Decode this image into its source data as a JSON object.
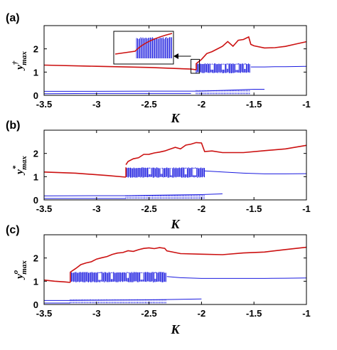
{
  "colors": {
    "upper": "#cc1111",
    "lower": "#1a1adf",
    "axis": "#000000"
  },
  "chart_data": [
    {
      "type": "scatter",
      "panel_label": "(a)",
      "xlabel": "K",
      "ylabel_base": "y",
      "ylabel_sup": "†",
      "ylabel_sub": "max",
      "xlim": [
        -3.5,
        -1
      ],
      "ylim": [
        0,
        3
      ],
      "xticks": [
        -3.5,
        -3,
        -2.5,
        -2,
        -1.5,
        -1
      ],
      "xtick_labels": [
        "-3.5",
        "-3",
        "-2.5",
        "-2",
        "-1.5",
        "-1"
      ],
      "yticks": [
        0,
        1,
        2
      ],
      "ytick_labels": [
        "0",
        "1",
        "2"
      ],
      "grid": false,
      "onset": -2.05,
      "chaos_end": -1.53,
      "series": [
        {
          "x": [
            -3.5,
            -3.0,
            -2.5,
            -2.1,
            -2.05
          ],
          "y": [
            1.3,
            1.25,
            1.2,
            1.13,
            1.1
          ]
        },
        {
          "x": [
            -2.05,
            -2.0,
            -1.95,
            -1.9,
            -1.85,
            -1.8,
            -1.75,
            -1.7,
            -1.65,
            -1.6,
            -1.55,
            -1.53,
            -1.5,
            -1.4,
            -1.3,
            -1.2,
            -1.1,
            -1.0
          ],
          "y": [
            1.35,
            1.55,
            1.8,
            1.9,
            2.0,
            2.1,
            2.3,
            2.1,
            2.35,
            2.4,
            2.5,
            2.2,
            2.15,
            2.05,
            2.05,
            2.1,
            2.2,
            2.3
          ]
        },
        {
          "x": [
            -1.53,
            -1.4,
            -1.3,
            -1.2,
            -1.1,
            -1.0
          ],
          "y": [
            1.22,
            1.22,
            1.23,
            1.23,
            1.24,
            1.25
          ]
        },
        {
          "x": [
            -3.5,
            -3.0,
            -2.5,
            -2.0,
            -1.5,
            -1.4
          ],
          "y": [
            0.17,
            0.17,
            0.18,
            0.18,
            0.26,
            0.26
          ]
        },
        {
          "x": [
            -3.5,
            -3.0,
            -2.5,
            -2.1
          ],
          "y": [
            0.07,
            0.08,
            0.08,
            0.08
          ]
        }
      ],
      "chaotic_band": {
        "x_range": [
          -2.05,
          -1.53
        ],
        "y_range": [
          0.95,
          1.38
        ]
      },
      "lower_band": {
        "x_range": [
          -2.05,
          -1.53
        ],
        "y_range": [
          0.05,
          0.22
        ]
      },
      "inset": true
    },
    {
      "type": "scatter",
      "panel_label": "(b)",
      "xlabel": "K",
      "ylabel_base": "y",
      "ylabel_sup": "*",
      "ylabel_sub": "max",
      "xlim": [
        -3.5,
        -1
      ],
      "ylim": [
        0,
        3
      ],
      "xticks": [
        -3.5,
        -3,
        -2.5,
        -2,
        -1.5,
        -1
      ],
      "xtick_labels": [
        "-3.5",
        "-3",
        "-2.5",
        "-2",
        "-1.5",
        "-1"
      ],
      "yticks": [
        0,
        1,
        2
      ],
      "ytick_labels": [
        "0",
        "1",
        "2"
      ],
      "grid": false,
      "onset": -2.72,
      "chaos_end": -1.97,
      "series": [
        {
          "x": [
            -3.5,
            -3.2,
            -2.9,
            -2.72
          ],
          "y": [
            1.2,
            1.15,
            1.05,
            0.98
          ]
        },
        {
          "x": [
            -2.72,
            -2.7,
            -2.65,
            -2.6,
            -2.55,
            -2.5,
            -2.45,
            -2.4,
            -2.35,
            -2.3,
            -2.25,
            -2.2,
            -2.15,
            -2.1,
            -2.05,
            -2.0,
            -1.97,
            -1.9,
            -1.8,
            -1.6,
            -1.4,
            -1.2,
            -1.0
          ],
          "y": [
            1.5,
            1.65,
            1.75,
            1.8,
            1.95,
            1.95,
            2.0,
            2.05,
            2.1,
            2.2,
            2.25,
            2.2,
            2.35,
            2.4,
            2.45,
            2.45,
            2.1,
            2.1,
            2.05,
            2.05,
            2.1,
            2.2,
            2.35
          ]
        },
        {
          "x": [
            -1.97,
            -1.8,
            -1.6,
            -1.4,
            -1.2,
            -1.0
          ],
          "y": [
            1.25,
            1.2,
            1.15,
            1.12,
            1.12,
            1.13
          ]
        },
        {
          "x": [
            -3.5,
            -3.0,
            -2.72,
            -2.5,
            -2.0,
            -1.8
          ],
          "y": [
            0.17,
            0.18,
            0.18,
            0.2,
            0.23,
            0.26
          ]
        },
        {
          "x": [
            -3.5,
            -3.0,
            -2.72
          ],
          "y": [
            0.06,
            0.06,
            0.06
          ]
        }
      ],
      "chaotic_band": {
        "x_range": [
          -2.72,
          -1.97
        ],
        "y_range": [
          0.95,
          1.4
        ]
      },
      "lower_band": {
        "x_range": [
          -2.72,
          -1.97
        ],
        "y_range": [
          0.05,
          0.2
        ]
      },
      "inset": false
    },
    {
      "type": "scatter",
      "panel_label": "(c)",
      "xlabel": "K",
      "ylabel_base": "y",
      "ylabel_sup": "o",
      "ylabel_sub": "max",
      "xlim": [
        -3.5,
        -1
      ],
      "ylim": [
        0,
        3
      ],
      "xticks": [
        -3.5,
        -3,
        -2.5,
        -2,
        -1.5,
        -1
      ],
      "xtick_labels": [
        "-3.5",
        "-3",
        "-2.5",
        "-2",
        "-1.5",
        "-1"
      ],
      "yticks": [
        0,
        1,
        2
      ],
      "ytick_labels": [
        "0",
        "1",
        "2"
      ],
      "grid": false,
      "onset": -3.25,
      "chaos_end": -2.33,
      "series": [
        {
          "x": [
            -3.5,
            -3.4,
            -3.3,
            -3.25
          ],
          "y": [
            1.05,
            1.0,
            0.97,
            0.95
          ]
        },
        {
          "x": [
            -3.25,
            -3.2,
            -3.15,
            -3.1,
            -3.05,
            -3.0,
            -2.95,
            -2.9,
            -2.85,
            -2.8,
            -2.75,
            -2.7,
            -2.65,
            -2.6,
            -2.55,
            -2.5,
            -2.45,
            -2.4,
            -2.35,
            -2.33,
            -2.2,
            -2.0,
            -1.8,
            -1.6,
            -1.4,
            -1.2,
            -1.0
          ],
          "y": [
            1.4,
            1.55,
            1.7,
            1.8,
            1.85,
            1.95,
            2.0,
            2.05,
            2.15,
            2.2,
            2.25,
            2.3,
            2.3,
            2.35,
            2.4,
            2.45,
            2.4,
            2.45,
            2.4,
            2.3,
            2.2,
            2.15,
            2.15,
            2.2,
            2.25,
            2.35,
            2.45
          ]
        },
        {
          "x": [
            -2.33,
            -2.2,
            -2.0,
            -1.8,
            -1.6,
            -1.4,
            -1.2,
            -1.0
          ],
          "y": [
            1.2,
            1.15,
            1.12,
            1.12,
            1.12,
            1.12,
            1.13,
            1.14
          ]
        },
        {
          "x": [
            -3.5,
            -3.25,
            -3.0,
            -2.5,
            -2.0
          ],
          "y": [
            0.17,
            0.17,
            0.18,
            0.2,
            0.24
          ]
        },
        {
          "x": [
            -3.5,
            -3.3,
            -3.25
          ],
          "y": [
            0.06,
            0.06,
            0.06
          ]
        }
      ],
      "chaotic_band": {
        "x_range": [
          -3.25,
          -2.33
        ],
        "y_range": [
          0.95,
          1.4
        ]
      },
      "lower_band": {
        "x_range": [
          -3.25,
          -2.33
        ],
        "y_range": [
          0.05,
          0.22
        ]
      },
      "inset": false
    }
  ]
}
